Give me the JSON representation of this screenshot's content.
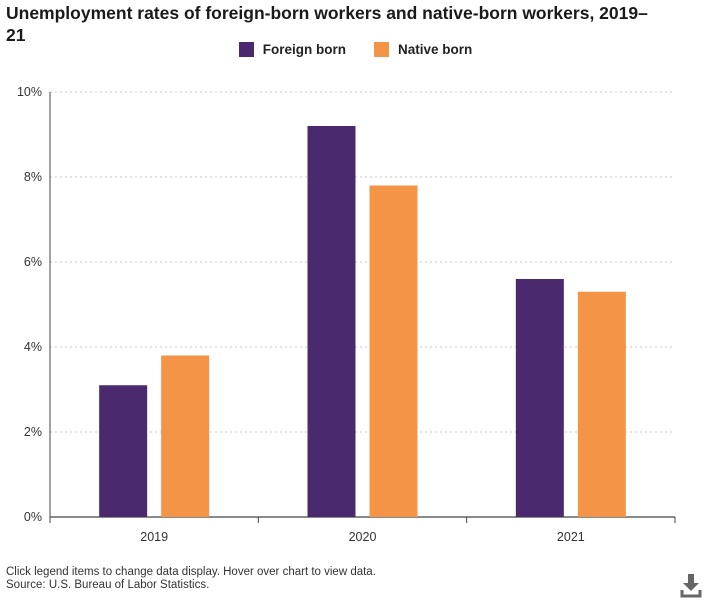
{
  "title": "Unemployment rates of foreign-born workers and native-born workers, 2019–21",
  "colors": {
    "foreign": "#4a296e",
    "native": "#f39446",
    "grid": "#c8c8c8",
    "axis": "#444444"
  },
  "footer": {
    "note": "Click legend items to change data display. Hover over chart to view data.",
    "source": "Source: U.S. Bureau of Labor Statistics."
  },
  "icons": {
    "download": "download-icon"
  },
  "chart_data": {
    "type": "bar",
    "categories": [
      "2019",
      "2020",
      "2021"
    ],
    "series": [
      {
        "name": "Foreign born",
        "values": [
          3.1,
          9.2,
          5.6
        ]
      },
      {
        "name": "Native born",
        "values": [
          3.8,
          7.8,
          5.3
        ]
      }
    ],
    "title": "Unemployment rates of foreign-born workers and native-born workers, 2019–21",
    "ylim": [
      0,
      10
    ],
    "yticks": [
      0,
      2,
      4,
      6,
      8,
      10
    ],
    "ytick_suffix": "%",
    "grid": true,
    "legend": "top-center"
  }
}
